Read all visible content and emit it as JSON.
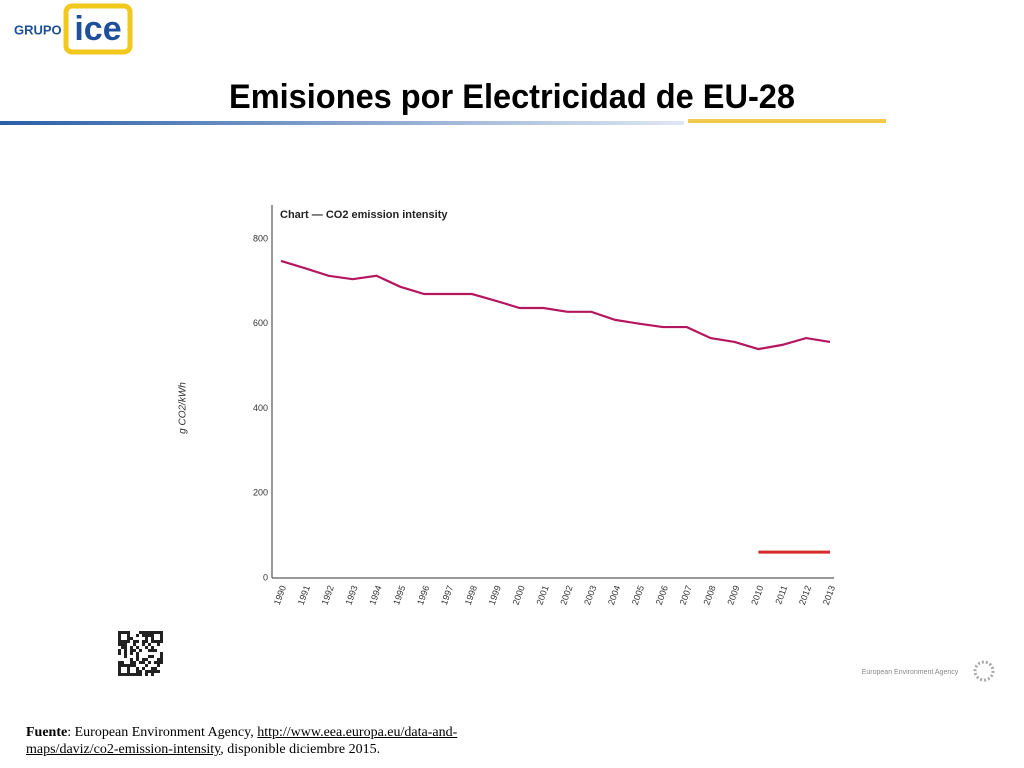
{
  "header": {
    "brand": "GRUPO",
    "logo": "ice",
    "title": "Emisiones por Electricidad de EU-28"
  },
  "chart_data": {
    "type": "line",
    "title": "Chart — CO2 emission intensity",
    "y_label": "g CO2/kWh",
    "categories": [
      "1990",
      "1991",
      "1992",
      "1993",
      "1994",
      "1995",
      "1996",
      "1997",
      "1998",
      "1999",
      "2000",
      "2001",
      "2002",
      "2003",
      "2004",
      "2005",
      "2006",
      "2007",
      "2008",
      "2009",
      "2010",
      "2011",
      "2012",
      "2013"
    ],
    "series": [
      {
        "color": "#b5175f",
        "values": [
          748,
          731,
          713,
          705,
          713,
          687,
          670,
          670,
          670,
          654,
          637,
          637,
          628,
          628,
          609,
          600,
          592,
          592,
          566,
          557,
          540,
          550,
          566,
          557
        ]
      },
      {
        "color": "#d42a2a",
        "values": [
          null,
          null,
          null,
          null,
          null,
          null,
          null,
          null,
          null,
          null,
          null,
          null,
          null,
          null,
          null,
          null,
          null,
          null,
          null,
          null,
          61,
          61,
          61,
          61
        ]
      }
    ],
    "ylim": [
      0,
      880
    ],
    "yticks": [
      0,
      200,
      400,
      600,
      800
    ],
    "grid": false
  },
  "agency": "European Environment Agency",
  "footer": {
    "label": "Fuente",
    "text": ":  European Environment Agency, ",
    "link": "http://www.eea.europa.eu/data-and-maps/daviz/co2-emission-intensity",
    "rest": ", disponible diciembre 2015."
  }
}
